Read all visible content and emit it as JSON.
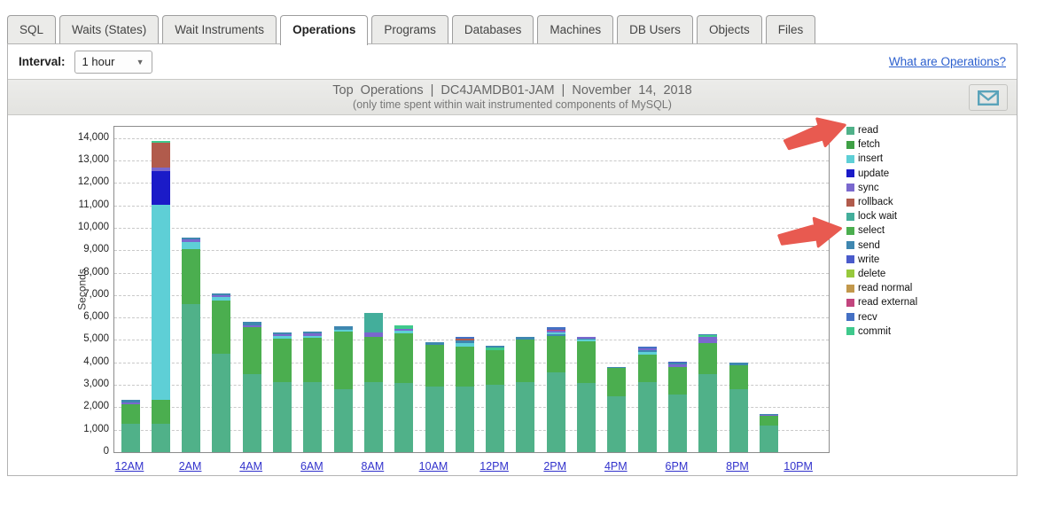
{
  "tabs": [
    {
      "label": "SQL",
      "active": false
    },
    {
      "label": "Waits (States)",
      "active": false
    },
    {
      "label": "Wait Instruments",
      "active": false
    },
    {
      "label": "Operations",
      "active": true
    },
    {
      "label": "Programs",
      "active": false
    },
    {
      "label": "Databases",
      "active": false
    },
    {
      "label": "Machines",
      "active": false
    },
    {
      "label": "DB Users",
      "active": false
    },
    {
      "label": "Objects",
      "active": false
    },
    {
      "label": "Files",
      "active": false
    }
  ],
  "toolbar": {
    "interval_label": "Interval:",
    "interval_value": "1 hour",
    "help_link": "What are Operations?"
  },
  "panel": {
    "title": "Top Operations | DC4JAMDB01-JAM | November 14, 2018",
    "subtitle": "(only time spent within wait instrumented components of MySQL)",
    "email_icon": "envelope-icon",
    "email_icon_color": "#5aa3ba"
  },
  "annotations": {
    "arrows": [
      {
        "points_to": "read"
      },
      {
        "points_to": "select"
      }
    ],
    "arrow_color": "#e85a50"
  },
  "chart_data": {
    "type": "bar",
    "stacked": true,
    "title": "Top Operations | DC4JAMDB01-JAM | November 14, 2018",
    "ylabel": "Seconds",
    "ylim": [
      0,
      14500
    ],
    "ytick_interval": 1000,
    "yticks": [
      "0",
      "1,000",
      "2,000",
      "3,000",
      "4,000",
      "5,000",
      "6,000",
      "7,000",
      "8,000",
      "9,000",
      "10,000",
      "11,000",
      "12,000",
      "13,000",
      "14,000"
    ],
    "grid": "horizontal-dashed",
    "legend_position": "right",
    "x_axis_links": [
      "12AM",
      "2AM",
      "4AM",
      "6AM",
      "8AM",
      "10AM",
      "12PM",
      "2PM",
      "4PM",
      "6PM",
      "8PM",
      "10PM"
    ],
    "categories": [
      "12AM",
      "1AM",
      "2AM",
      "3AM",
      "4AM",
      "5AM",
      "6AM",
      "7AM",
      "8AM",
      "9AM",
      "10AM",
      "11AM",
      "12PM",
      "1PM",
      "2PM",
      "3PM",
      "4PM",
      "5PM",
      "6PM",
      "7PM",
      "8PM",
      "9PM"
    ],
    "legend": [
      {
        "name": "read",
        "color": "#50b189"
      },
      {
        "name": "fetch",
        "color": "#3fa045"
      },
      {
        "name": "insert",
        "color": "#5ecfd6"
      },
      {
        "name": "update",
        "color": "#1b1bc8"
      },
      {
        "name": "sync",
        "color": "#7a68ce"
      },
      {
        "name": "rollback",
        "color": "#b15b4c"
      },
      {
        "name": "lock wait",
        "color": "#43ae9b"
      },
      {
        "name": "select",
        "color": "#4bae4f"
      },
      {
        "name": "send",
        "color": "#3f87b0"
      },
      {
        "name": "write",
        "color": "#4a5bcb"
      },
      {
        "name": "delete",
        "color": "#97c93d"
      },
      {
        "name": "read normal",
        "color": "#c2984c"
      },
      {
        "name": "read external",
        "color": "#c2457e"
      },
      {
        "name": "recv",
        "color": "#4470c4"
      },
      {
        "name": "commit",
        "color": "#3fc98c"
      }
    ],
    "bars": [
      {
        "hour": "12AM",
        "segments": [
          {
            "op": "read",
            "value": 1260
          },
          {
            "op": "select",
            "value": 880
          },
          {
            "op": "sync",
            "value": 70
          },
          {
            "op": "send",
            "value": 120
          }
        ]
      },
      {
        "hour": "1AM",
        "segments": [
          {
            "op": "read",
            "value": 1250
          },
          {
            "op": "select",
            "value": 1080
          },
          {
            "op": "insert",
            "value": 8700
          },
          {
            "op": "update",
            "value": 1490
          },
          {
            "op": "sync",
            "value": 170
          },
          {
            "op": "rollback",
            "value": 1100
          },
          {
            "op": "commit",
            "value": 90
          }
        ]
      },
      {
        "hour": "2AM",
        "segments": [
          {
            "op": "read",
            "value": 6580
          },
          {
            "op": "select",
            "value": 2450
          },
          {
            "op": "insert",
            "value": 340
          },
          {
            "op": "sync",
            "value": 110
          },
          {
            "op": "send",
            "value": 80
          }
        ]
      },
      {
        "hour": "3AM",
        "segments": [
          {
            "op": "read",
            "value": 4390
          },
          {
            "op": "select",
            "value": 2370
          },
          {
            "op": "insert",
            "value": 150
          },
          {
            "op": "sync",
            "value": 80
          },
          {
            "op": "send",
            "value": 100
          }
        ]
      },
      {
        "hour": "4AM",
        "segments": [
          {
            "op": "read",
            "value": 3470
          },
          {
            "op": "select",
            "value": 2100
          },
          {
            "op": "sync",
            "value": 90
          },
          {
            "op": "send",
            "value": 140
          }
        ]
      },
      {
        "hour": "5AM",
        "segments": [
          {
            "op": "read",
            "value": 3115
          },
          {
            "op": "select",
            "value": 1960
          },
          {
            "op": "insert",
            "value": 90
          },
          {
            "op": "sync",
            "value": 90
          },
          {
            "op": "send",
            "value": 90
          }
        ]
      },
      {
        "hour": "6AM",
        "segments": [
          {
            "op": "read",
            "value": 3115
          },
          {
            "op": "select",
            "value": 2000
          },
          {
            "op": "insert",
            "value": 80
          },
          {
            "op": "sync",
            "value": 100
          },
          {
            "op": "send",
            "value": 90
          }
        ]
      },
      {
        "hour": "7AM",
        "segments": [
          {
            "op": "read",
            "value": 2800
          },
          {
            "op": "select",
            "value": 2570
          },
          {
            "op": "insert",
            "value": 90
          },
          {
            "op": "send",
            "value": 150
          }
        ]
      },
      {
        "hour": "8AM",
        "segments": [
          {
            "op": "read",
            "value": 3115
          },
          {
            "op": "select",
            "value": 2025
          },
          {
            "op": "sync",
            "value": 200
          },
          {
            "op": "lock wait",
            "value": 870
          }
        ]
      },
      {
        "hour": "9AM",
        "segments": [
          {
            "op": "read",
            "value": 3070
          },
          {
            "op": "select",
            "value": 2210
          },
          {
            "op": "insert",
            "value": 135
          },
          {
            "op": "sync",
            "value": 85
          },
          {
            "op": "commit",
            "value": 160
          }
        ]
      },
      {
        "hour": "10AM",
        "segments": [
          {
            "op": "read",
            "value": 2910
          },
          {
            "op": "select",
            "value": 1875
          },
          {
            "op": "send",
            "value": 135
          }
        ]
      },
      {
        "hour": "11AM",
        "segments": [
          {
            "op": "read",
            "value": 2920
          },
          {
            "op": "select",
            "value": 1775
          },
          {
            "op": "insert",
            "value": 180
          },
          {
            "op": "send",
            "value": 90
          },
          {
            "op": "rollback",
            "value": 80
          },
          {
            "op": "recv",
            "value": 95
          }
        ]
      },
      {
        "hour": "12PM",
        "segments": [
          {
            "op": "read",
            "value": 3010
          },
          {
            "op": "select",
            "value": 1550
          },
          {
            "op": "commit",
            "value": 90
          },
          {
            "op": "send",
            "value": 95
          }
        ]
      },
      {
        "hour": "1PM",
        "segments": [
          {
            "op": "read",
            "value": 3115
          },
          {
            "op": "select",
            "value": 1895
          },
          {
            "op": "send",
            "value": 130
          }
        ]
      },
      {
        "hour": "2PM",
        "segments": [
          {
            "op": "read",
            "value": 3560
          },
          {
            "op": "select",
            "value": 1610
          },
          {
            "op": "send",
            "value": 90
          },
          {
            "op": "insert",
            "value": 90
          },
          {
            "op": "sync",
            "value": 60
          },
          {
            "op": "read external",
            "value": 60
          },
          {
            "op": "recv",
            "value": 100
          }
        ]
      },
      {
        "hour": "3PM",
        "segments": [
          {
            "op": "read",
            "value": 3075
          },
          {
            "op": "select",
            "value": 1845
          },
          {
            "op": "insert",
            "value": 80
          },
          {
            "op": "send",
            "value": 60
          },
          {
            "op": "sync",
            "value": 90
          }
        ]
      },
      {
        "hour": "4PM",
        "segments": [
          {
            "op": "read",
            "value": 2485
          },
          {
            "op": "select",
            "value": 1270
          },
          {
            "op": "send",
            "value": 45
          }
        ]
      },
      {
        "hour": "5PM",
        "segments": [
          {
            "op": "read",
            "value": 3105
          },
          {
            "op": "select",
            "value": 1245
          },
          {
            "op": "insert",
            "value": 120
          },
          {
            "op": "send",
            "value": 60
          },
          {
            "op": "sync",
            "value": 110
          },
          {
            "op": "recv",
            "value": 80
          }
        ]
      },
      {
        "hour": "6PM",
        "segments": [
          {
            "op": "read",
            "value": 2550
          },
          {
            "op": "select",
            "value": 1250
          },
          {
            "op": "sync",
            "value": 120
          },
          {
            "op": "send",
            "value": 60
          },
          {
            "op": "write",
            "value": 55
          }
        ]
      },
      {
        "hour": "7PM",
        "segments": [
          {
            "op": "read",
            "value": 3470
          },
          {
            "op": "select",
            "value": 1410
          },
          {
            "op": "sync",
            "value": 240
          },
          {
            "op": "commit",
            "value": 80
          },
          {
            "op": "send",
            "value": 70
          }
        ]
      },
      {
        "hour": "8PM",
        "segments": [
          {
            "op": "read",
            "value": 2810
          },
          {
            "op": "select",
            "value": 1055
          },
          {
            "op": "send",
            "value": 130
          }
        ]
      },
      {
        "hour": "9PM",
        "segments": [
          {
            "op": "read",
            "value": 1170
          },
          {
            "op": "select",
            "value": 460
          },
          {
            "op": "sync",
            "value": 35
          },
          {
            "op": "send",
            "value": 30
          }
        ]
      }
    ]
  }
}
